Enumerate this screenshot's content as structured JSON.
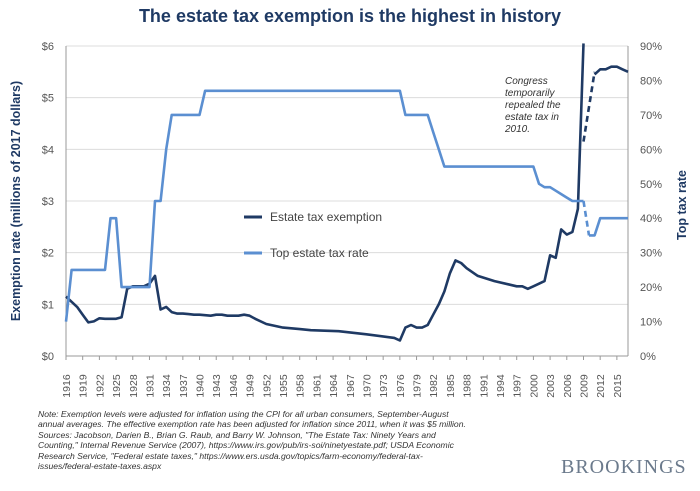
{
  "chart_data": {
    "type": "line",
    "title": "The estate tax exemption is the highest in history",
    "ylabel": "Exemption rate (millions of 2017 dollars)",
    "y2label": "Top tax rate",
    "ylim": [
      0,
      6
    ],
    "y2lim": [
      0,
      90
    ],
    "xlim": [
      1916,
      2017
    ],
    "yticks": [
      "$0",
      "$1",
      "$2",
      "$3",
      "$4",
      "$5",
      "$6"
    ],
    "y2ticks": [
      "0%",
      "10%",
      "20%",
      "30%",
      "40%",
      "50%",
      "60%",
      "70%",
      "80%",
      "90%"
    ],
    "xticks": [
      "1916",
      "1919",
      "1922",
      "1925",
      "1928",
      "1931",
      "1934",
      "1937",
      "1940",
      "1943",
      "1946",
      "1949",
      "1952",
      "1955",
      "1958",
      "1961",
      "1964",
      "1967",
      "1970",
      "1973",
      "1976",
      "1979",
      "1982",
      "1985",
      "1988",
      "1991",
      "1994",
      "1997",
      "2000",
      "2003",
      "2006",
      "2009",
      "2012",
      "2015"
    ],
    "legend": [
      "Estate tax exemption",
      "Top estate tax rate"
    ],
    "annotation": [
      "Congress",
      "temporarily",
      "repealed the",
      "estate tax in",
      "2010."
    ],
    "series": [
      {
        "name": "Estate tax exemption",
        "axis": "left",
        "color": "#1f3a64",
        "x": [
          1916,
          1917,
          1918,
          1919,
          1920,
          1921,
          1922,
          1923,
          1924,
          1925,
          1926,
          1927,
          1928,
          1929,
          1930,
          1931,
          1932,
          1933,
          1934,
          1935,
          1936,
          1937,
          1938,
          1939,
          1940,
          1941,
          1942,
          1943,
          1944,
          1945,
          1946,
          1947,
          1948,
          1949,
          1950,
          1952,
          1955,
          1958,
          1960,
          1965,
          1970,
          1975,
          1976,
          1977,
          1978,
          1979,
          1980,
          1981,
          1982,
          1983,
          1984,
          1985,
          1986,
          1987,
          1988,
          1990,
          1993,
          1997,
          1998,
          1999,
          2000,
          2001,
          2002,
          2003,
          2004,
          2005,
          2006,
          2007,
          2008,
          2009
        ],
        "values": [
          1.15,
          1.05,
          0.95,
          0.8,
          0.65,
          0.67,
          0.73,
          0.72,
          0.72,
          0.72,
          0.75,
          1.3,
          1.35,
          1.35,
          1.35,
          1.4,
          1.55,
          0.9,
          0.95,
          0.85,
          0.82,
          0.82,
          0.81,
          0.8,
          0.8,
          0.79,
          0.78,
          0.8,
          0.8,
          0.78,
          0.78,
          0.78,
          0.8,
          0.78,
          0.72,
          0.62,
          0.55,
          0.52,
          0.5,
          0.48,
          0.42,
          0.35,
          0.3,
          0.55,
          0.6,
          0.55,
          0.55,
          0.6,
          0.8,
          1.0,
          1.25,
          1.6,
          1.85,
          1.8,
          1.7,
          1.55,
          1.45,
          1.35,
          1.35,
          1.3,
          1.35,
          1.4,
          1.45,
          1.95,
          1.9,
          2.45,
          2.35,
          2.4,
          2.85,
          6.05
        ],
        "dashed_x": [
          2009,
          2011
        ],
        "dashed_values": [
          4.15,
          5.5
        ],
        "after_x": [
          2011,
          2012,
          2013,
          2014,
          2015,
          2016,
          2017
        ],
        "after_values": [
          5.45,
          5.55,
          5.55,
          5.6,
          5.6,
          5.55,
          5.5
        ]
      },
      {
        "name": "Top estate tax rate",
        "axis": "right",
        "color": "#5b8fd1",
        "x": [
          1916,
          1917,
          1918,
          1919,
          1920,
          1921,
          1922,
          1923,
          1924,
          1925,
          1926,
          1927,
          1928,
          1929,
          1930,
          1931,
          1932,
          1933,
          1934,
          1935,
          1936,
          1937,
          1938,
          1939,
          1940,
          1941,
          1942,
          1943,
          1944,
          1976,
          1977,
          1978,
          1979,
          1980,
          1981,
          1982,
          1983,
          1984,
          1985,
          1986,
          1987,
          1988,
          1989,
          1990,
          2000,
          2001,
          2002,
          2003,
          2004,
          2005,
          2006,
          2007,
          2008,
          2009
        ],
        "values": [
          10,
          25,
          25,
          25,
          25,
          25,
          25,
          25,
          40,
          40,
          20,
          20,
          20,
          20,
          20,
          20,
          45,
          45,
          60,
          70,
          70,
          70,
          70,
          70,
          70,
          77,
          77,
          77,
          77,
          77,
          70,
          70,
          70,
          70,
          70,
          65,
          60,
          55,
          55,
          55,
          55,
          55,
          55,
          55,
          55,
          50,
          49,
          49,
          48,
          47,
          46,
          45,
          45,
          45
        ],
        "dashed_x": [
          2009,
          2010
        ],
        "dashed_values": [
          45,
          35
        ],
        "after_x": [
          2010,
          2011,
          2012,
          2013,
          2014,
          2015,
          2016,
          2017
        ],
        "after_values": [
          35,
          35,
          40,
          40,
          40,
          40,
          40,
          40
        ]
      }
    ]
  },
  "note": [
    "Note: Exemption levels were adjusted for inflation using the CPI for all urban consumers, September-August",
    "annual averages. The effective exemption rate has been adjusted for inflation since 2011, when it was $5 million.",
    "Sources: Jacobson, Darien B., Brian G. Raub, and Barry W. Johnson, \"The Estate Tax: Ninety Years and",
    "Counting,\" Internal Revenue Service (2007), https://www.irs.gov/pub/irs-soi/ninetyestate.pdf; USDA Economic",
    "Research Service, \"Federal estate taxes,\" https://www.ers.usda.gov/topics/farm-economy/federal-tax-",
    "issues/federal-estate-taxes.aspx"
  ],
  "brand": "BROOKINGS"
}
